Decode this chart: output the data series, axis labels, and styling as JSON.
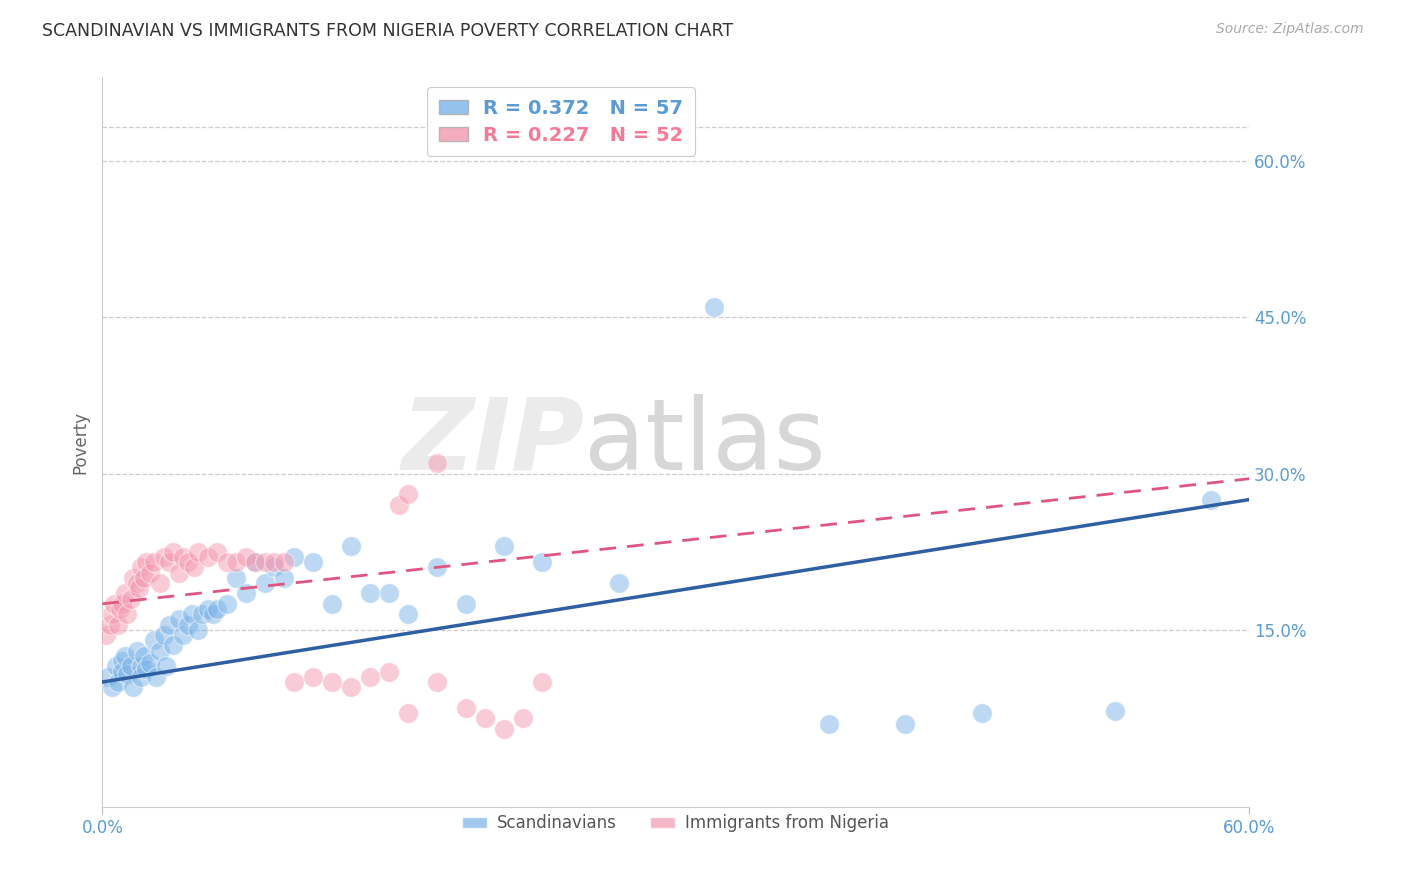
{
  "title": "SCANDINAVIAN VS IMMIGRANTS FROM NIGERIA POVERTY CORRELATION CHART",
  "source": "Source: ZipAtlas.com",
  "ylabel": "Poverty",
  "ytick_values": [
    0.6,
    0.45,
    0.3,
    0.15
  ],
  "xmin": 0.0,
  "xmax": 0.6,
  "ymin": -0.02,
  "ymax": 0.68,
  "legend_entries": [
    {
      "label": "R = 0.372   N = 57",
      "color": "#5b9bd5"
    },
    {
      "label": "R = 0.227   N = 52",
      "color": "#f47a96"
    }
  ],
  "legend_labels": [
    "Scandinavians",
    "Immigrants from Nigeria"
  ],
  "blue_color": "#7ab3e8",
  "pink_color": "#f498b0",
  "blue_line_color": "#2e5fa3",
  "pink_line_color": "#e05580",
  "watermark_zip": "ZIP",
  "watermark_atlas": "atlas",
  "scandinavian_x": [
    0.003,
    0.005,
    0.007,
    0.008,
    0.01,
    0.01,
    0.012,
    0.013,
    0.015,
    0.016,
    0.018,
    0.02,
    0.02,
    0.022,
    0.023,
    0.025,
    0.027,
    0.028,
    0.03,
    0.032,
    0.033,
    0.035,
    0.037,
    0.04,
    0.042,
    0.045,
    0.047,
    0.05,
    0.052,
    0.055,
    0.058,
    0.06,
    0.065,
    0.07,
    0.075,
    0.08,
    0.085,
    0.09,
    0.095,
    0.1,
    0.11,
    0.12,
    0.13,
    0.14,
    0.15,
    0.16,
    0.175,
    0.19,
    0.21,
    0.23,
    0.27,
    0.32,
    0.38,
    0.42,
    0.46,
    0.53,
    0.58
  ],
  "scandinavian_y": [
    0.105,
    0.095,
    0.115,
    0.1,
    0.12,
    0.11,
    0.125,
    0.108,
    0.115,
    0.095,
    0.13,
    0.115,
    0.105,
    0.125,
    0.112,
    0.118,
    0.14,
    0.105,
    0.13,
    0.145,
    0.115,
    0.155,
    0.135,
    0.16,
    0.145,
    0.155,
    0.165,
    0.15,
    0.165,
    0.17,
    0.165,
    0.17,
    0.175,
    0.2,
    0.185,
    0.215,
    0.195,
    0.21,
    0.2,
    0.22,
    0.215,
    0.175,
    0.23,
    0.185,
    0.185,
    0.165,
    0.21,
    0.175,
    0.23,
    0.215,
    0.195,
    0.46,
    0.06,
    0.06,
    0.07,
    0.072,
    0.275
  ],
  "nigeria_x": [
    0.002,
    0.004,
    0.005,
    0.006,
    0.008,
    0.009,
    0.01,
    0.012,
    0.013,
    0.015,
    0.016,
    0.018,
    0.019,
    0.02,
    0.022,
    0.023,
    0.025,
    0.027,
    0.03,
    0.032,
    0.035,
    0.037,
    0.04,
    0.042,
    0.045,
    0.048,
    0.05,
    0.055,
    0.06,
    0.065,
    0.07,
    0.075,
    0.08,
    0.085,
    0.09,
    0.095,
    0.1,
    0.11,
    0.12,
    0.13,
    0.14,
    0.15,
    0.155,
    0.16,
    0.175,
    0.19,
    0.2,
    0.21,
    0.22,
    0.23,
    0.16,
    0.175
  ],
  "nigeria_y": [
    0.145,
    0.155,
    0.165,
    0.175,
    0.155,
    0.17,
    0.175,
    0.185,
    0.165,
    0.18,
    0.2,
    0.195,
    0.19,
    0.21,
    0.2,
    0.215,
    0.205,
    0.215,
    0.195,
    0.22,
    0.215,
    0.225,
    0.205,
    0.22,
    0.215,
    0.21,
    0.225,
    0.22,
    0.225,
    0.215,
    0.215,
    0.22,
    0.215,
    0.215,
    0.215,
    0.215,
    0.1,
    0.105,
    0.1,
    0.095,
    0.105,
    0.11,
    0.27,
    0.28,
    0.31,
    0.075,
    0.065,
    0.055,
    0.065,
    0.1,
    0.07,
    0.1
  ],
  "blue_trend_start_y": 0.1,
  "blue_trend_end_y": 0.275,
  "pink_trend_start_y": 0.175,
  "pink_trend_end_y": 0.295
}
